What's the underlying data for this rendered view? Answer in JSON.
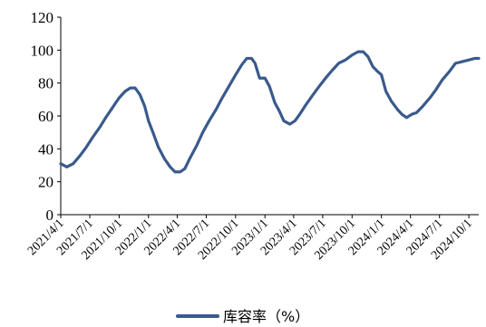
{
  "chart_data": {
    "type": "line",
    "title": "",
    "xlabel": "",
    "ylabel": "",
    "ylim": [
      0,
      120
    ],
    "yticks": [
      0,
      20,
      40,
      60,
      80,
      100,
      120
    ],
    "xlim": [
      "2021-04-01",
      "2024-11-01"
    ],
    "x_tick_labels": [
      "2021/4/1",
      "2021/7/1",
      "2021/10/1",
      "2022/1/1",
      "2022/4/1",
      "2022/7/1",
      "2022/10/1",
      "2023/1/1",
      "2023/4/1",
      "2023/7/1",
      "2023/10/1",
      "2024/1/1",
      "2024/4/1",
      "2024/7/1",
      "2024/10/1"
    ],
    "x_tick_dates": [
      "2021-04-01",
      "2021-07-01",
      "2021-10-01",
      "2022-01-01",
      "2022-04-01",
      "2022-07-01",
      "2022-10-01",
      "2023-01-01",
      "2023-04-01",
      "2023-07-01",
      "2023-10-01",
      "2024-01-01",
      "2024-04-01",
      "2024-07-01",
      "2024-10-01"
    ],
    "grid": false,
    "legend_position": "bottom",
    "series": [
      {
        "name": "库容率（%）",
        "color": "#3a5a8c",
        "points": [
          [
            "2021-04-01",
            31
          ],
          [
            "2021-04-20",
            29
          ],
          [
            "2021-05-10",
            31
          ],
          [
            "2021-06-01",
            36
          ],
          [
            "2021-06-20",
            41
          ],
          [
            "2021-07-10",
            47
          ],
          [
            "2021-08-01",
            53
          ],
          [
            "2021-08-20",
            59
          ],
          [
            "2021-09-10",
            65
          ],
          [
            "2021-10-01",
            71
          ],
          [
            "2021-10-20",
            75
          ],
          [
            "2021-11-05",
            77
          ],
          [
            "2021-11-20",
            77
          ],
          [
            "2021-12-05",
            73
          ],
          [
            "2021-12-20",
            66
          ],
          [
            "2022-01-01",
            57
          ],
          [
            "2022-01-15",
            50
          ],
          [
            "2022-02-01",
            41
          ],
          [
            "2022-02-20",
            34
          ],
          [
            "2022-03-10",
            29
          ],
          [
            "2022-03-25",
            26
          ],
          [
            "2022-04-10",
            26
          ],
          [
            "2022-04-25",
            28
          ],
          [
            "2022-05-10",
            34
          ],
          [
            "2022-06-01",
            42
          ],
          [
            "2022-06-20",
            50
          ],
          [
            "2022-07-10",
            57
          ],
          [
            "2022-08-01",
            64
          ],
          [
            "2022-08-20",
            71
          ],
          [
            "2022-09-10",
            78
          ],
          [
            "2022-10-01",
            85
          ],
          [
            "2022-10-20",
            91
          ],
          [
            "2022-11-05",
            95
          ],
          [
            "2022-11-20",
            95
          ],
          [
            "2022-12-01",
            92
          ],
          [
            "2022-12-15",
            83
          ],
          [
            "2023-01-01",
            83
          ],
          [
            "2023-01-15",
            78
          ],
          [
            "2023-02-01",
            68
          ],
          [
            "2023-02-15",
            63
          ],
          [
            "2023-03-01",
            57
          ],
          [
            "2023-03-20",
            55
          ],
          [
            "2023-04-05",
            57
          ],
          [
            "2023-04-20",
            61
          ],
          [
            "2023-05-10",
            67
          ],
          [
            "2023-06-01",
            73
          ],
          [
            "2023-06-20",
            78
          ],
          [
            "2023-07-10",
            83
          ],
          [
            "2023-08-01",
            88
          ],
          [
            "2023-08-20",
            92
          ],
          [
            "2023-09-10",
            94
          ],
          [
            "2023-10-01",
            97
          ],
          [
            "2023-10-20",
            99
          ],
          [
            "2023-11-05",
            99
          ],
          [
            "2023-11-20",
            96
          ],
          [
            "2023-12-05",
            90
          ],
          [
            "2023-12-20",
            87
          ],
          [
            "2024-01-01",
            85
          ],
          [
            "2024-01-15",
            75
          ],
          [
            "2024-02-01",
            69
          ],
          [
            "2024-02-20",
            64
          ],
          [
            "2024-03-05",
            61
          ],
          [
            "2024-03-20",
            59
          ],
          [
            "2024-04-05",
            61
          ],
          [
            "2024-04-20",
            62
          ],
          [
            "2024-05-10",
            66
          ],
          [
            "2024-06-01",
            71
          ],
          [
            "2024-06-20",
            76
          ],
          [
            "2024-07-10",
            82
          ],
          [
            "2024-08-01",
            87
          ],
          [
            "2024-08-20",
            92
          ],
          [
            "2024-09-10",
            93
          ],
          [
            "2024-10-01",
            94
          ],
          [
            "2024-10-20",
            95
          ],
          [
            "2024-11-01",
            95
          ]
        ]
      }
    ]
  }
}
